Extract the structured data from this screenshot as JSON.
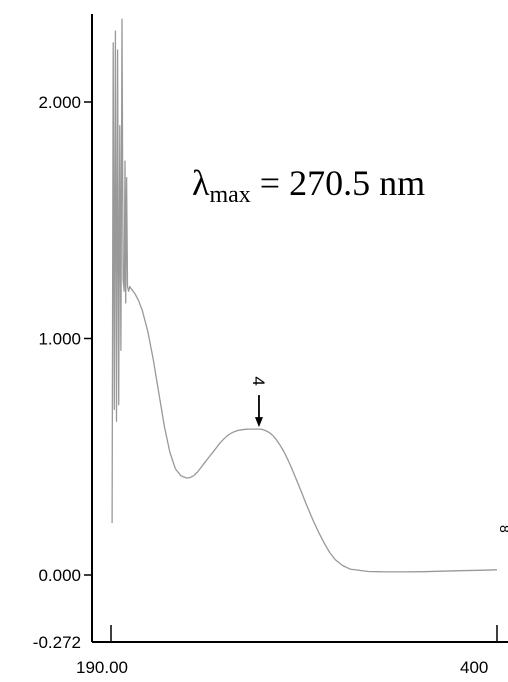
{
  "chart_data": {
    "type": "line",
    "title": "",
    "xlabel": "",
    "ylabel": "",
    "xlim": [
      190.0,
      400.0
    ],
    "ylim": [
      -0.272,
      2.3
    ],
    "y_ticks": [
      {
        "value": 2.0,
        "label": "2.000"
      },
      {
        "value": 1.0,
        "label": "1.000"
      },
      {
        "value": 0.0,
        "label": "0.000"
      },
      {
        "value": -0.272,
        "label": "-0.272"
      }
    ],
    "x_ticks": [
      {
        "value": 190.0,
        "label": "190.00"
      },
      {
        "value": 400.0,
        "label": "400"
      }
    ],
    "series": [
      {
        "color": "#999999",
        "x": [
          190.6,
          191.2,
          191.8,
          192.4,
          193.0,
          193.6,
          194.2,
          194.8,
          195.4,
          196.0,
          196.6,
          197.2,
          197.6,
          198.0,
          198.5,
          199.0,
          199.6,
          200.2,
          201,
          203,
          205,
          207,
          210,
          213,
          216,
          219,
          222,
          225,
          228,
          231,
          233,
          235,
          237,
          239,
          241,
          243,
          245,
          247,
          249,
          251,
          253,
          255,
          257,
          259,
          261,
          263,
          265,
          267,
          268,
          269,
          270,
          270.5,
          271,
          272,
          274,
          276,
          278,
          280,
          282,
          284,
          286,
          288,
          290,
          292,
          294,
          296,
          298,
          300,
          303,
          306,
          309,
          312,
          316,
          320,
          330,
          340,
          350,
          360,
          370,
          380,
          390,
          400
        ],
        "y": [
          0.22,
          2.25,
          0.7,
          2.3,
          0.65,
          2.22,
          0.72,
          1.9,
          0.95,
          2.35,
          1.25,
          1.2,
          1.75,
          1.15,
          1.68,
          1.22,
          1.2,
          1.22,
          1.21,
          1.19,
          1.16,
          1.12,
          1.03,
          0.91,
          0.77,
          0.63,
          0.52,
          0.45,
          0.42,
          0.41,
          0.412,
          0.42,
          0.435,
          0.455,
          0.475,
          0.495,
          0.515,
          0.535,
          0.555,
          0.572,
          0.587,
          0.598,
          0.606,
          0.611,
          0.614,
          0.616,
          0.617,
          0.617,
          0.617,
          0.617,
          0.617,
          0.617,
          0.617,
          0.616,
          0.611,
          0.603,
          0.59,
          0.572,
          0.549,
          0.522,
          0.491,
          0.457,
          0.42,
          0.382,
          0.343,
          0.304,
          0.267,
          0.23,
          0.18,
          0.135,
          0.095,
          0.065,
          0.04,
          0.025,
          0.015,
          0.013,
          0.013,
          0.014,
          0.016,
          0.018,
          0.02,
          0.022
        ]
      }
    ],
    "peak_marker": {
      "x": 270.5,
      "label": "4"
    },
    "annotation": {
      "lambda": "λ",
      "subscript": "max",
      "text": " = 270.5 nm"
    },
    "grid": false,
    "legend": "none"
  }
}
